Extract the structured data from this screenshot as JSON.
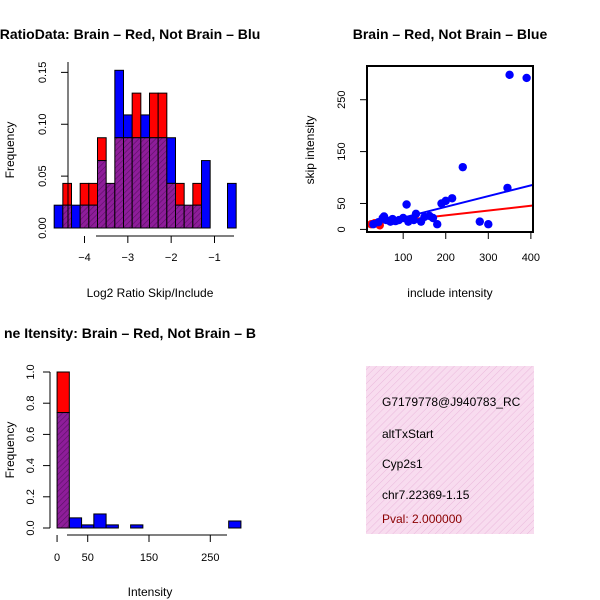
{
  "colors": {
    "red": "#ff0000",
    "blue": "#0000ff",
    "purple": "#a020f0",
    "overlap": "#8e1d9a",
    "pink_panel": "#f6d6ec",
    "pval": "#8b0000"
  },
  "chart_data": [
    {
      "type": "bar",
      "title": "RatioData: Brain – Red, Not Brain – Blu",
      "xlabel": "Log2 Ratio Skip/Include",
      "ylabel": "Frequency",
      "xlim": [
        -4.75,
        -0.25
      ],
      "ylim": [
        0,
        0.16
      ],
      "xticks": [
        -4,
        -3,
        -2,
        -1
      ],
      "xtick_labels": [
        "−4",
        "−3",
        "−2",
        "−1"
      ],
      "yticks": [
        0.0,
        0.05,
        0.1,
        0.15
      ],
      "ytick_labels": [
        "0.00",
        "0.05",
        "0.10",
        "0.15"
      ],
      "bin_width": 0.2,
      "bin_starts": [
        -4.7,
        -4.5,
        -4.3,
        -4.1,
        -3.9,
        -3.7,
        -3.5,
        -3.3,
        -3.1,
        -2.9,
        -2.7,
        -2.5,
        -2.3,
        -2.1,
        -1.9,
        -1.7,
        -1.5,
        -1.3,
        -1.1,
        -0.9,
        -0.7,
        -0.5
      ],
      "series": [
        {
          "name": "Brain",
          "color": "red",
          "values": [
            0,
            0.043,
            0,
            0.043,
            0.043,
            0.087,
            0.043,
            0.087,
            0.087,
            0.13,
            0.087,
            0.13,
            0.13,
            0.043,
            0.043,
            0.022,
            0.043,
            0,
            0,
            0,
            0,
            0
          ]
        },
        {
          "name": "Not Brain",
          "color": "blue",
          "values": [
            0.022,
            0.022,
            0.022,
            0.022,
            0.022,
            0.065,
            0.043,
            0.152,
            0.109,
            0.087,
            0.109,
            0.087,
            0.087,
            0.087,
            0.022,
            0.022,
            0.022,
            0.065,
            0,
            0,
            0.043,
            0
          ]
        }
      ]
    },
    {
      "type": "scatter",
      "title": "Brain – Red, Not Brain – Blue",
      "xlabel": "include intensity",
      "ylabel": "skip intensity",
      "xlim": [
        15,
        405
      ],
      "ylim": [
        -5,
        315
      ],
      "xticks": [
        100,
        200,
        300,
        400
      ],
      "yticks": [
        0,
        50,
        150,
        250
      ],
      "series": [
        {
          "name": "Brain",
          "color": "red",
          "points": [
            [
              25,
              10
            ],
            [
              33,
              12
            ],
            [
              45,
              8
            ]
          ]
        },
        {
          "name": "Not Brain",
          "color": "blue",
          "points": [
            [
              30,
              10
            ],
            [
              42,
              14
            ],
            [
              52,
              22
            ],
            [
              55,
              25
            ],
            [
              60,
              18
            ],
            [
              70,
              15
            ],
            [
              75,
              20
            ],
            [
              82,
              16
            ],
            [
              90,
              18
            ],
            [
              100,
              22
            ],
            [
              108,
              48
            ],
            [
              112,
              15
            ],
            [
              120,
              20
            ],
            [
              125,
              18
            ],
            [
              130,
              30
            ],
            [
              142,
              15
            ],
            [
              150,
              24
            ],
            [
              162,
              26
            ],
            [
              170,
              22
            ],
            [
              180,
              10
            ],
            [
              190,
              50
            ],
            [
              200,
              55
            ],
            [
              215,
              60
            ],
            [
              240,
              120
            ],
            [
              280,
              15
            ],
            [
              300,
              10
            ],
            [
              345,
              80
            ],
            [
              350,
              298
            ],
            [
              390,
              292
            ]
          ]
        }
      ],
      "fit_lines": [
        {
          "name": "Brain fit",
          "color": "red",
          "from": [
            15,
            10
          ],
          "to": [
            405,
            46
          ]
        },
        {
          "name": "Not Brain fit",
          "color": "blue",
          "from": [
            15,
            5
          ],
          "to": [
            405,
            86
          ]
        }
      ]
    },
    {
      "type": "bar",
      "title": "ne Itensity: Brain – Red, Not Brain – B",
      "xlabel": "Intensity",
      "ylabel": "Frequency",
      "xlim": [
        -5,
        305
      ],
      "ylim": [
        0,
        1.0
      ],
      "xticks": [
        0,
        50,
        150,
        250
      ],
      "yticks": [
        0.0,
        0.2,
        0.4,
        0.6,
        0.8,
        1.0
      ],
      "ytick_labels": [
        "0.0",
        "0.2",
        "0.4",
        "0.6",
        "0.8",
        "1.0"
      ],
      "bin_width": 20,
      "bin_starts": [
        0,
        20,
        40,
        60,
        80,
        100,
        120,
        140,
        160,
        180,
        200,
        220,
        240,
        260,
        280
      ],
      "series": [
        {
          "name": "Brain",
          "color": "red",
          "values": [
            1.0,
            0,
            0,
            0,
            0,
            0,
            0,
            0,
            0,
            0,
            0,
            0,
            0,
            0,
            0
          ]
        },
        {
          "name": "Not Brain",
          "color": "blue",
          "values": [
            0.74,
            0.065,
            0.02,
            0.09,
            0.02,
            0,
            0.02,
            0,
            0,
            0,
            0,
            0,
            0,
            0,
            0.045
          ]
        }
      ]
    }
  ],
  "info_panel": {
    "id_line": "G7179778@J940783_RC",
    "event_type": "altTxStart",
    "gene": "Cyp2s1",
    "location": "chr7.22369-1.15",
    "pval": "Pval: 2.000000"
  }
}
